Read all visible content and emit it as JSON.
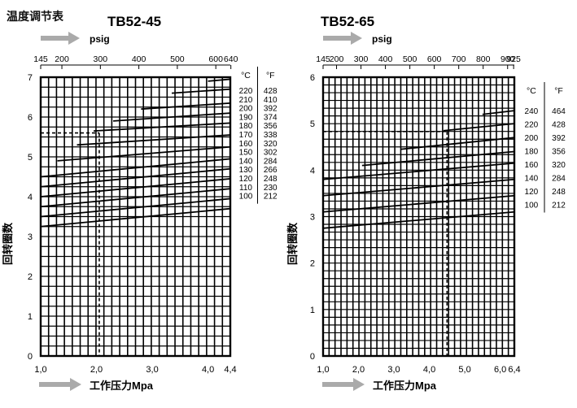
{
  "page_title": "温度调节表",
  "chart_data": [
    {
      "type": "line",
      "title": "TB52-45",
      "xlabel": "工作压力Mpa",
      "ylabel": "回转圈数",
      "secondary_xlabel": "psig",
      "x_ticks": [
        "1,0",
        "2,0",
        "3,0",
        "4,0",
        "4,4"
      ],
      "x_tick_values": [
        1.0,
        2.0,
        3.0,
        4.0,
        4.4
      ],
      "top_ticks": [
        "145",
        "200",
        "300",
        "400",
        "500",
        "600",
        "640"
      ],
      "top_tick_values": [
        1.0,
        1.38,
        2.07,
        2.76,
        3.45,
        4.14,
        4.41
      ],
      "xlim": [
        1.0,
        4.4
      ],
      "ylim": [
        0,
        7
      ],
      "y_ticks": [
        "0",
        "1",
        "2",
        "3",
        "4",
        "5",
        "6",
        "7"
      ],
      "grid": true,
      "legend_position": "right",
      "legend_headers": {
        "c": "°C",
        "f": "°F"
      },
      "series": [
        {
          "name": "100",
          "c": "100",
          "f": "212",
          "x": [
            1.0,
            4.4
          ],
          "y": [
            3.25,
            3.7
          ]
        },
        {
          "name": "110",
          "c": "110",
          "f": "230",
          "x": [
            1.0,
            4.4
          ],
          "y": [
            3.5,
            3.95
          ]
        },
        {
          "name": "120",
          "c": "120",
          "f": "248",
          "x": [
            1.0,
            4.4
          ],
          "y": [
            3.75,
            4.2
          ]
        },
        {
          "name": "130",
          "c": "130",
          "f": "266",
          "x": [
            1.0,
            4.4
          ],
          "y": [
            4.0,
            4.45
          ]
        },
        {
          "name": "140",
          "c": "140",
          "f": "284",
          "x": [
            1.0,
            4.4
          ],
          "y": [
            4.25,
            4.7
          ]
        },
        {
          "name": "150",
          "c": "150",
          "f": "302",
          "x": [
            1.0,
            4.4
          ],
          "y": [
            4.5,
            4.95
          ]
        },
        {
          "name": "160",
          "c": "160",
          "f": "320",
          "x": [
            1.3,
            4.4
          ],
          "y": [
            4.9,
            5.25
          ]
        },
        {
          "name": "170",
          "c": "170",
          "f": "338",
          "x": [
            1.65,
            4.4
          ],
          "y": [
            5.3,
            5.55
          ]
        },
        {
          "name": "180",
          "c": "180",
          "f": "356",
          "x": [
            1.95,
            4.4
          ],
          "y": [
            5.65,
            5.85
          ]
        },
        {
          "name": "190",
          "c": "190",
          "f": "374",
          "x": [
            2.3,
            4.4
          ],
          "y": [
            5.9,
            6.1
          ]
        },
        {
          "name": "200",
          "c": "200",
          "f": "392",
          "x": [
            2.8,
            4.4
          ],
          "y": [
            6.2,
            6.35
          ]
        },
        {
          "name": "210",
          "c": "210",
          "f": "410",
          "x": [
            3.35,
            4.4
          ],
          "y": [
            6.6,
            6.7
          ]
        },
        {
          "name": "220",
          "c": "220",
          "f": "428",
          "x": [
            4.0,
            4.4
          ],
          "y": [
            6.9,
            6.95
          ]
        }
      ],
      "reference": {
        "x": 2.05,
        "y": 5.6
      }
    },
    {
      "type": "line",
      "title": "TB52-65",
      "xlabel": "工作压力Mpa",
      "ylabel": "回转圈数",
      "secondary_xlabel": "psig",
      "x_ticks": [
        "1,0",
        "2,0",
        "3,0",
        "4,0",
        "5,0",
        "6,0",
        "6,4"
      ],
      "x_tick_values": [
        1.0,
        2.0,
        3.0,
        4.0,
        5.0,
        6.0,
        6.4
      ],
      "top_ticks": [
        "145",
        "200",
        "300",
        "400",
        "500",
        "600",
        "700",
        "800",
        "900",
        "925"
      ],
      "top_tick_values": [
        1.0,
        1.38,
        2.07,
        2.76,
        3.45,
        4.14,
        4.83,
        5.52,
        6.21,
        6.38
      ],
      "xlim": [
        1.0,
        6.4
      ],
      "ylim": [
        0,
        6
      ],
      "y_ticks": [
        "0",
        "1",
        "2",
        "3",
        "4",
        "5",
        "6"
      ],
      "grid": true,
      "legend_position": "right",
      "legend_headers": {
        "c": "°C",
        "f": "°F"
      },
      "series": [
        {
          "name": "100",
          "c": "100",
          "f": "212",
          "x": [
            1.0,
            6.4
          ],
          "y": [
            2.75,
            3.1
          ]
        },
        {
          "name": "120",
          "c": "120",
          "f": "248",
          "x": [
            1.0,
            6.4
          ],
          "y": [
            3.1,
            3.45
          ]
        },
        {
          "name": "140",
          "c": "140",
          "f": "284",
          "x": [
            1.0,
            6.4
          ],
          "y": [
            3.45,
            3.8
          ]
        },
        {
          "name": "160",
          "c": "160",
          "f": "320",
          "x": [
            1.0,
            6.4
          ],
          "y": [
            3.8,
            4.15
          ]
        },
        {
          "name": "180",
          "c": "180",
          "f": "356",
          "x": [
            2.1,
            6.4
          ],
          "y": [
            4.1,
            4.4
          ]
        },
        {
          "name": "200",
          "c": "200",
          "f": "392",
          "x": [
            3.2,
            6.4
          ],
          "y": [
            4.45,
            4.7
          ]
        },
        {
          "name": "220",
          "c": "220",
          "f": "428",
          "x": [
            4.4,
            6.4
          ],
          "y": [
            4.85,
            5.0
          ]
        },
        {
          "name": "240",
          "c": "240",
          "f": "464",
          "x": [
            5.5,
            6.4
          ],
          "y": [
            5.2,
            5.28
          ]
        }
      ],
      "reference": {
        "x": 4.5,
        "y": 4.83
      }
    }
  ]
}
